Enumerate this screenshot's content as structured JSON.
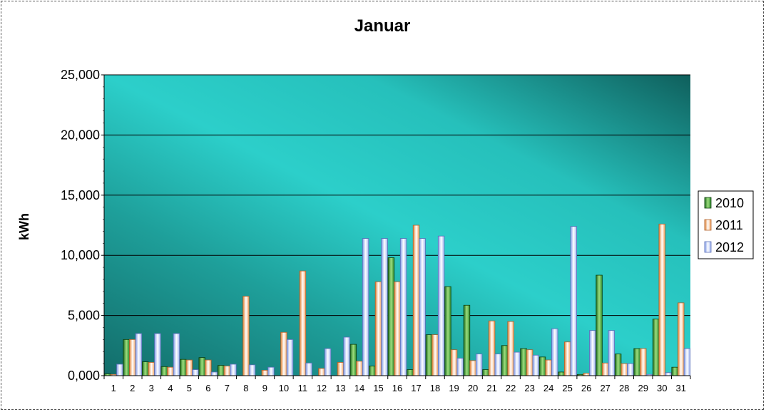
{
  "chart_data": {
    "type": "bar",
    "title": "Januar",
    "xlabel": "",
    "ylabel": "kWh",
    "ylim": [
      0,
      25000
    ],
    "yticks": [
      "0,000",
      "5,000",
      "10,000",
      "15,000",
      "20,000",
      "25,000"
    ],
    "grid": true,
    "legend_position": "right",
    "categories": [
      "1",
      "2",
      "3",
      "4",
      "5",
      "6",
      "7",
      "8",
      "9",
      "10",
      "11",
      "12",
      "13",
      "14",
      "15",
      "16",
      "17",
      "18",
      "19",
      "20",
      "21",
      "22",
      "23",
      "24",
      "25",
      "26",
      "27",
      "28",
      "29",
      "30",
      "31"
    ],
    "series": [
      {
        "name": "2010",
        "color": "#2e8b2e",
        "values": [
          150,
          3000,
          1150,
          750,
          1350,
          1500,
          850,
          0,
          0,
          0,
          0,
          0,
          0,
          2600,
          800,
          9800,
          500,
          3400,
          7400,
          5850,
          500,
          2500,
          2250,
          1550,
          300,
          100,
          8350,
          1800,
          2250,
          4700,
          700
        ]
      },
      {
        "name": "2011",
        "color": "#f4a460",
        "values": [
          100,
          3000,
          1100,
          700,
          1300,
          1300,
          800,
          6600,
          450,
          3600,
          8700,
          600,
          1100,
          1200,
          7800,
          7800,
          12500,
          3400,
          2150,
          1250,
          4550,
          4500,
          2150,
          1300,
          2800,
          200,
          1050,
          1000,
          2250,
          12600,
          6050
        ]
      },
      {
        "name": "2012",
        "color": "#9fb4f0",
        "values": [
          950,
          3500,
          3500,
          3500,
          500,
          300,
          950,
          900,
          700,
          3000,
          1050,
          2250,
          3200,
          11400,
          11400,
          11400,
          11400,
          11600,
          1450,
          1800,
          1800,
          1950,
          1700,
          3900,
          12400,
          3750,
          3750,
          1000,
          100,
          250,
          2250
        ]
      }
    ]
  }
}
